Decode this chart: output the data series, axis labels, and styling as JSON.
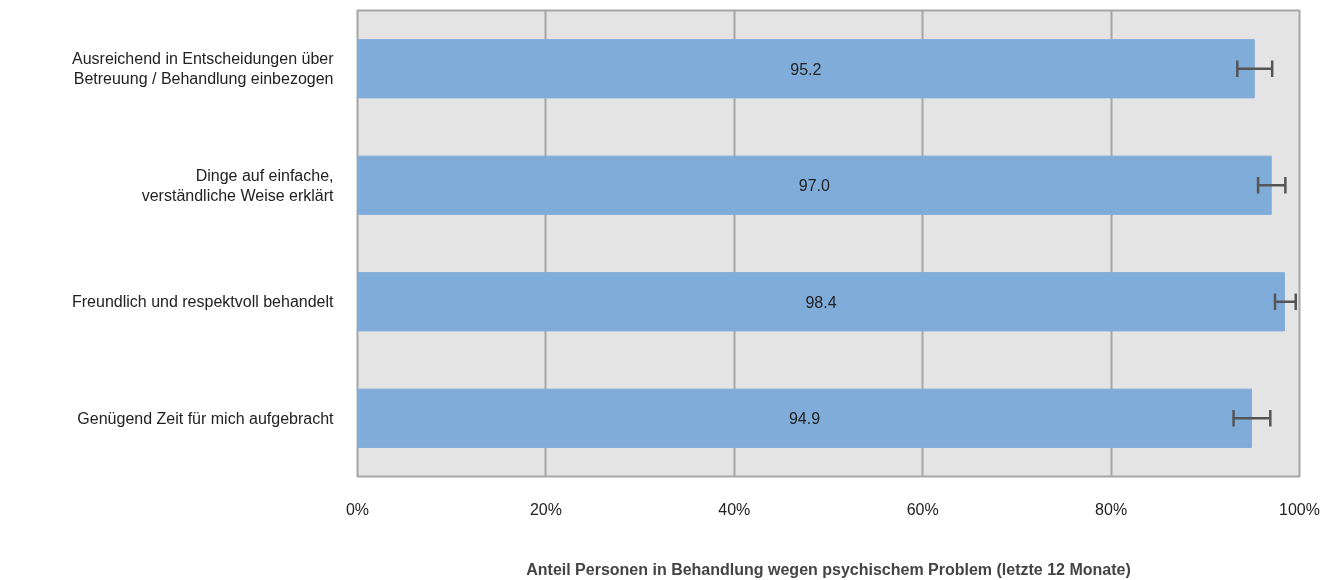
{
  "chart_data": {
    "type": "bar",
    "orientation": "horizontal",
    "xlabel": "Anteil Personen in Behandlung wegen psychischem Problem (letzte 12 Monate)",
    "categories": [
      "Ausreichend in Entscheidungen über\nBetreuung / Behandlung einbezogen",
      "Dinge auf einfache,\nverständliche Weise erklärt",
      "Freundlich und respektvoll behandelt",
      "Genügend Zeit für mich aufgebracht"
    ],
    "values": [
      95.2,
      97.0,
      98.4,
      94.9
    ],
    "errors": [
      [
        93.4,
        97.1
      ],
      [
        95.6,
        98.5
      ],
      [
        97.4,
        99.6
      ],
      [
        93.0,
        96.9
      ]
    ],
    "color": "#80acd9",
    "xlim": [
      0,
      100
    ],
    "xticks": [
      {
        "value": 0,
        "label": "0%"
      },
      {
        "value": 20,
        "label": "20%"
      },
      {
        "value": 40,
        "label": "40%"
      },
      {
        "value": 60,
        "label": "60%"
      },
      {
        "value": 80,
        "label": "80%"
      },
      {
        "value": 100,
        "label": "100%"
      }
    ],
    "value_labels": [
      "95.2",
      "97.0",
      "98.4",
      "94.9"
    ],
    "grid": "x"
  }
}
